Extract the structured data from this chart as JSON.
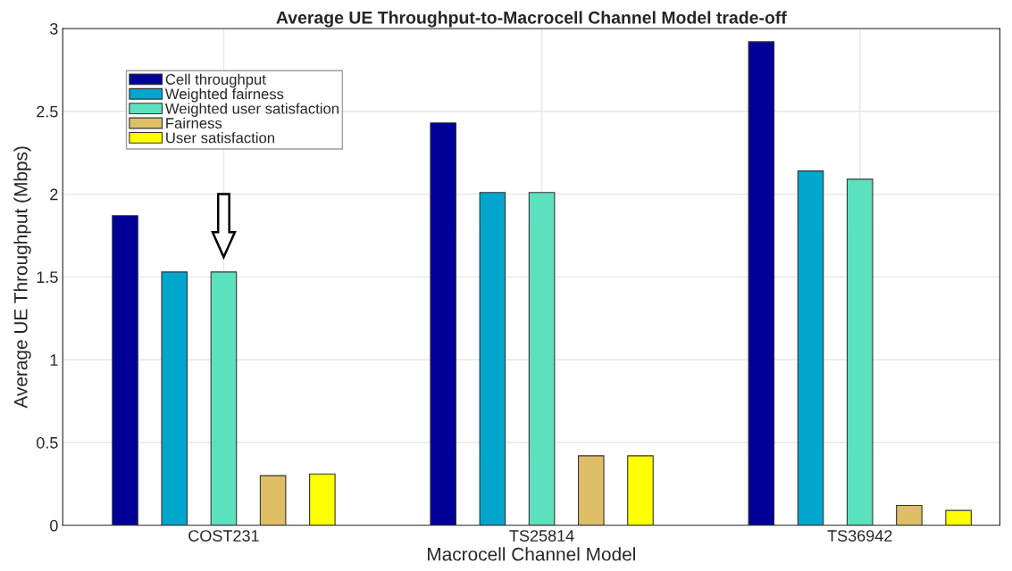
{
  "chart_data": {
    "type": "bar",
    "title": "Average UE Throughput-to-Macrocell Channel Model trade-off",
    "xlabel": "Macrocell Channel Model",
    "ylabel": "Average UE Throughput (Mbps)",
    "categories": [
      "COST231",
      "TS25814",
      "TS36942"
    ],
    "series": [
      {
        "name": "Cell throughput",
        "color": "#000099",
        "values": [
          1.87,
          2.43,
          2.92
        ]
      },
      {
        "name": "Weighted fairness",
        "color": "#00a6cc",
        "values": [
          1.53,
          2.01,
          2.14
        ]
      },
      {
        "name": "Weighted user satisfaction",
        "color": "#5ce1bf",
        "values": [
          1.53,
          2.01,
          2.09
        ]
      },
      {
        "name": "Fairness",
        "color": "#dfbe68",
        "values": [
          0.3,
          0.42,
          0.12
        ]
      },
      {
        "name": "User satisfaction",
        "color": "#ffff00",
        "values": [
          0.31,
          0.42,
          0.09
        ]
      }
    ],
    "ylim": [
      0,
      3
    ],
    "yticks": [
      0,
      0.5,
      1,
      1.5,
      2,
      2.5,
      3
    ],
    "grid": true,
    "legend": "top left"
  }
}
